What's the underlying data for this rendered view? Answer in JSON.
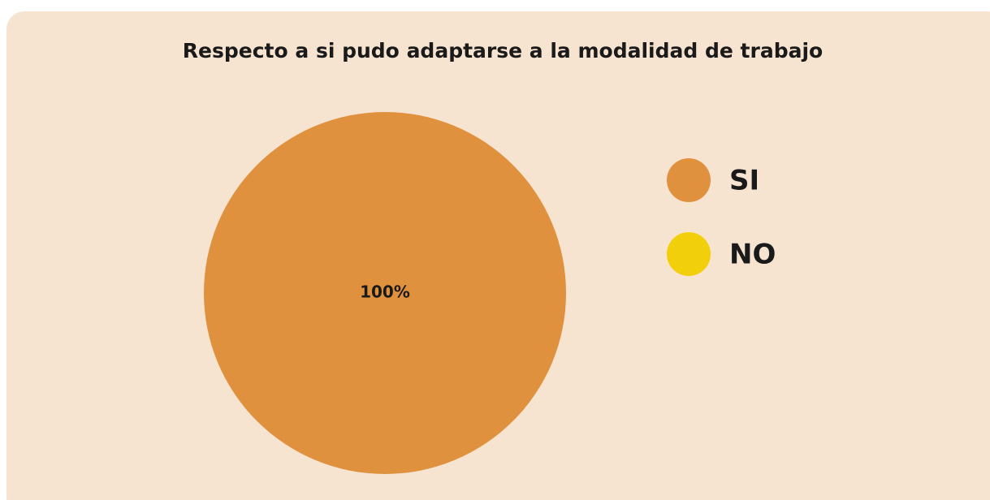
{
  "chart_data": {
    "type": "pie",
    "title": "Respecto a si pudo adaptarse a la modalidad de trabajo",
    "categories": [
      "SI",
      "NO"
    ],
    "values": [
      100,
      0
    ],
    "value_labels": [
      "100%",
      null
    ],
    "colors": [
      "#e0913e",
      "#f2cf0b"
    ],
    "legend": "right"
  }
}
